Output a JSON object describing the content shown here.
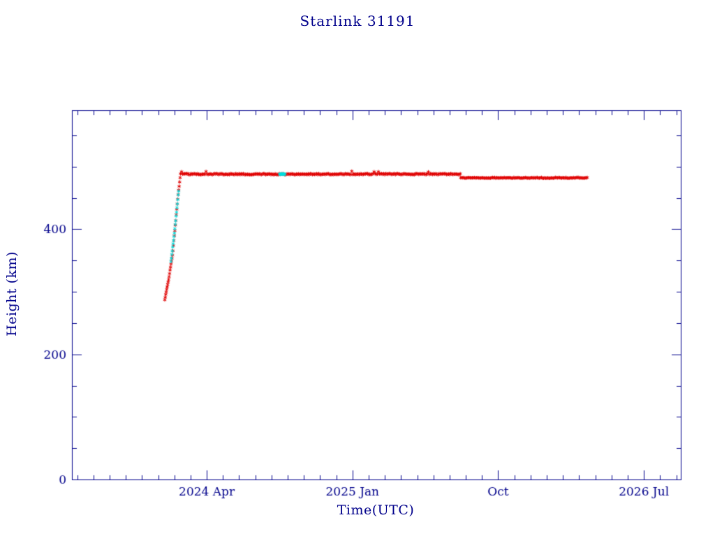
{
  "chart_data": {
    "type": "scatter",
    "title": "Starlink 31191",
    "xlabel": "Time(UTC)",
    "ylabel": "Height (km)",
    "xlim": [
      2023.556,
      2026.69
    ],
    "ylim": [
      0,
      590
    ],
    "grid": false,
    "legend": "none",
    "colors": {
      "background": "#FFFFFF",
      "axis": "#00008B",
      "text": "#00008B",
      "primary": "#E00000",
      "secondary": "#00DFDF"
    },
    "x_ticks": [
      {
        "t": 2024.25,
        "label": "2024 Apr"
      },
      {
        "t": 2025.0,
        "label": "2025 Jan"
      },
      {
        "t": 2025.75,
        "label": "Oct"
      },
      {
        "t": 2026.5,
        "label": "2026 Jul"
      }
    ],
    "x_minor_interval_months": 1,
    "y_ticks": [
      {
        "v": 0,
        "label": "0"
      },
      {
        "v": 200,
        "label": "200"
      },
      {
        "v": 400,
        "label": "400"
      }
    ],
    "y_minor_step": 50,
    "series": [
      {
        "name": "height-red",
        "color_key": "primary",
        "marker": "asterisk",
        "segments": [
          {
            "kind": "polyline",
            "points": [
              [
                2024.034,
                287
              ],
              [
                2024.055,
                322
              ],
              [
                2024.075,
                362
              ],
              [
                2024.09,
                412
              ],
              [
                2024.101,
                450
              ],
              [
                2024.109,
                472
              ],
              [
                2024.115,
                488
              ]
            ],
            "step_days": 0.9,
            "jitter_km": 0.6,
            "spikes": false
          },
          {
            "kind": "polyline",
            "points": [
              [
                2024.115,
                488
              ],
              [
                2025.557,
                488
              ]
            ],
            "step_days": 2,
            "jitter_km": 0.9,
            "spikes": true
          },
          {
            "kind": "polyline",
            "points": [
              [
                2025.557,
                482
              ],
              [
                2026.21,
                482
              ]
            ],
            "step_days": 2,
            "jitter_km": 0.7,
            "spikes": false
          }
        ]
      },
      {
        "name": "height-cyan",
        "color_key": "secondary",
        "marker": "asterisk",
        "segments": [
          {
            "kind": "polyline",
            "points": [
              [
                2024.066,
                348
              ],
              [
                2024.085,
                398
              ],
              [
                2024.098,
                438
              ],
              [
                2024.107,
                466
              ]
            ],
            "step_days": 0.8,
            "jitter_km": 0.6,
            "spikes": false
          },
          {
            "kind": "polyline",
            "points": [
              [
                2024.625,
                488
              ],
              [
                2024.655,
                488
              ]
            ],
            "step_days": 1,
            "jitter_km": 0.4,
            "spikes": false
          }
        ]
      }
    ]
  }
}
